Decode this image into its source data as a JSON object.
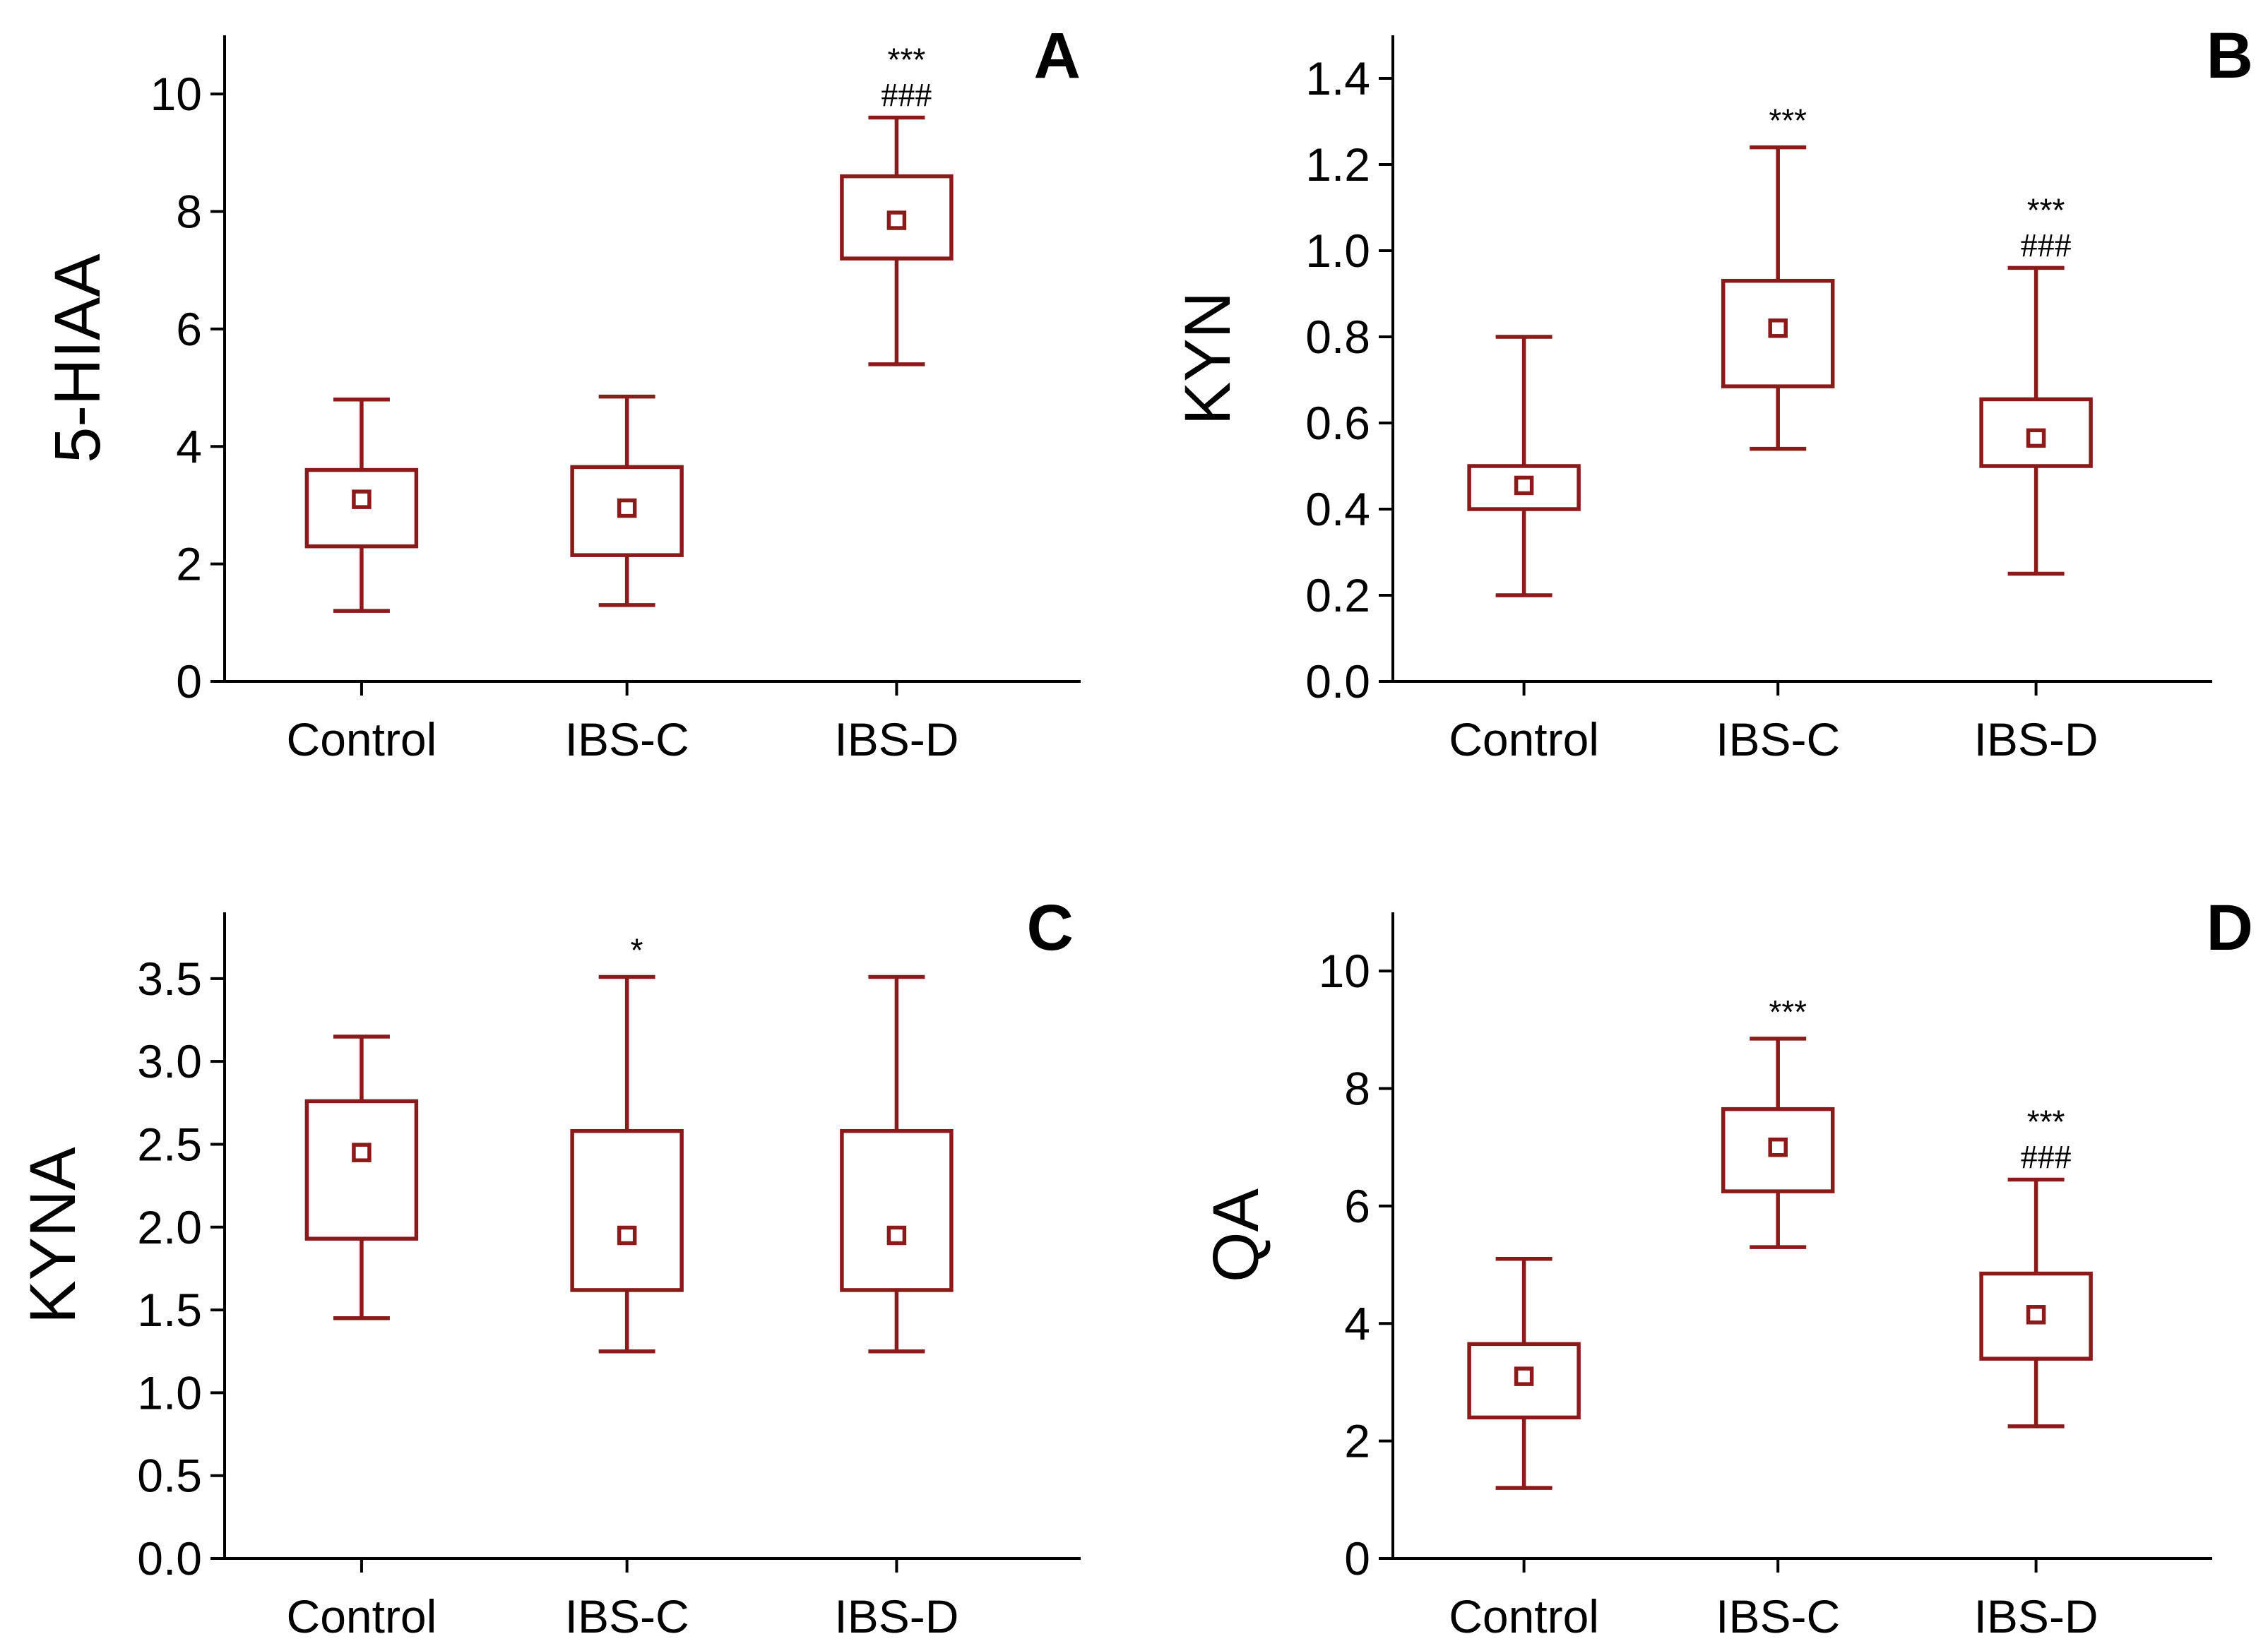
{
  "figure": {
    "series_color": "#8b1a1a",
    "axis_color": "#000000"
  },
  "chart_data": [
    {
      "type": "box",
      "panel": "A",
      "ylabel": "5-HIAA",
      "xlabel": "",
      "categories": [
        "Control",
        "IBS-C",
        "IBS-D"
      ],
      "ylim": [
        0,
        11
      ],
      "yticks": [
        0,
        2,
        4,
        6,
        8,
        10
      ],
      "ytick_labels": [
        "0",
        "2",
        "4",
        "6",
        "8",
        "10"
      ],
      "boxes": [
        {
          "whisker_low": 1.2,
          "q1": 2.3,
          "mean": 3.1,
          "q3": 3.6,
          "whisker_high": 4.8,
          "annotations": []
        },
        {
          "whisker_low": 1.3,
          "q1": 2.15,
          "mean": 2.95,
          "q3": 3.65,
          "whisker_high": 4.85,
          "annotations": []
        },
        {
          "whisker_low": 5.4,
          "q1": 7.2,
          "mean": 7.85,
          "q3": 8.6,
          "whisker_high": 9.6,
          "annotations": [
            "***",
            "###"
          ]
        }
      ]
    },
    {
      "type": "box",
      "panel": "B",
      "ylabel": "KYN",
      "xlabel": "",
      "categories": [
        "Control",
        "IBS-C",
        "IBS-D"
      ],
      "ylim": [
        0,
        1.5
      ],
      "yticks": [
        0,
        0.2,
        0.4,
        0.6,
        0.8,
        1.0,
        1.2,
        1.4
      ],
      "ytick_labels": [
        "0.0",
        "0.2",
        "0.4",
        "0.6",
        "0.8",
        "1.0",
        "1.2",
        "1.4"
      ],
      "boxes": [
        {
          "whisker_low": 0.2,
          "q1": 0.4,
          "mean": 0.455,
          "q3": 0.5,
          "whisker_high": 0.8,
          "annotations": []
        },
        {
          "whisker_low": 0.54,
          "q1": 0.685,
          "mean": 0.82,
          "q3": 0.93,
          "whisker_high": 1.24,
          "annotations": [
            "***"
          ]
        },
        {
          "whisker_low": 0.25,
          "q1": 0.5,
          "mean": 0.565,
          "q3": 0.655,
          "whisker_high": 0.96,
          "annotations": [
            "***",
            "###"
          ]
        }
      ]
    },
    {
      "type": "box",
      "panel": "C",
      "ylabel": "KYNA",
      "xlabel": "",
      "categories": [
        "Control",
        "IBS-C",
        "IBS-D"
      ],
      "ylim": [
        0,
        3.9
      ],
      "yticks": [
        0,
        0.5,
        1.0,
        1.5,
        2.0,
        2.5,
        3.0,
        3.5
      ],
      "ytick_labels": [
        "0.0",
        "0.5",
        "1.0",
        "1.5",
        "2.0",
        "2.5",
        "3.0",
        "3.5"
      ],
      "boxes": [
        {
          "whisker_low": 1.45,
          "q1": 1.93,
          "mean": 2.45,
          "q3": 2.76,
          "whisker_high": 3.15,
          "annotations": []
        },
        {
          "whisker_low": 1.25,
          "q1": 1.62,
          "mean": 1.95,
          "q3": 2.58,
          "whisker_high": 3.51,
          "annotations": [
            "*"
          ]
        },
        {
          "whisker_low": 1.25,
          "q1": 1.62,
          "mean": 1.95,
          "q3": 2.58,
          "whisker_high": 3.51,
          "annotations": []
        }
      ]
    },
    {
      "type": "box",
      "panel": "D",
      "ylabel": "QA",
      "xlabel": "",
      "categories": [
        "Control",
        "IBS-C",
        "IBS-D"
      ],
      "ylim": [
        0,
        11
      ],
      "yticks": [
        0,
        2,
        4,
        6,
        8,
        10
      ],
      "ytick_labels": [
        "0",
        "2",
        "4",
        "6",
        "8",
        "10"
      ],
      "boxes": [
        {
          "whisker_low": 1.2,
          "q1": 2.4,
          "mean": 3.1,
          "q3": 3.65,
          "whisker_high": 5.1,
          "annotations": []
        },
        {
          "whisker_low": 5.3,
          "q1": 6.25,
          "mean": 7.0,
          "q3": 7.65,
          "whisker_high": 8.85,
          "annotations": [
            "***"
          ]
        },
        {
          "whisker_low": 2.25,
          "q1": 3.4,
          "mean": 4.15,
          "q3": 4.85,
          "whisker_high": 6.45,
          "annotations": [
            "***",
            "###"
          ]
        }
      ]
    }
  ]
}
